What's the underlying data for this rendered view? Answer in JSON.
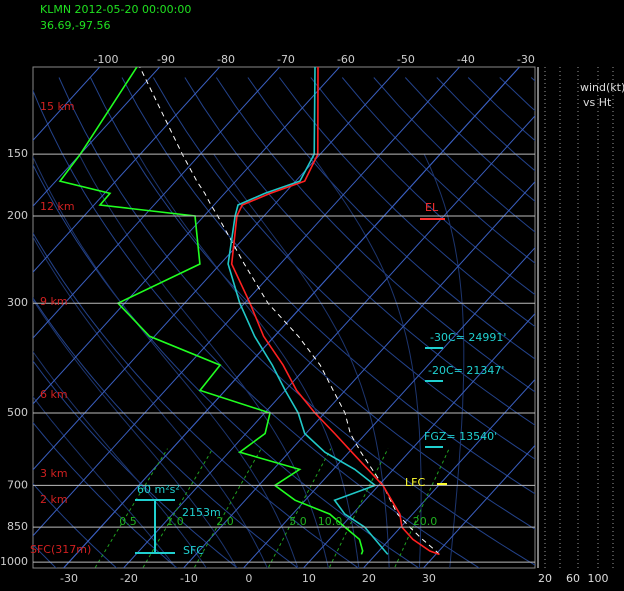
{
  "header": {
    "station": "KLMN 2012-05-20 00:00:00",
    "location": "36.69,-97.56"
  },
  "chart_data": {
    "type": "skewt",
    "pressure": [
      965,
      950,
      900,
      850,
      800,
      750,
      700,
      650,
      600,
      550,
      500,
      450,
      400,
      350,
      300,
      250,
      200,
      190,
      180,
      170,
      150,
      100
    ],
    "series": [
      {
        "color": "#20ff20",
        "values": [
          17.6,
          17.3,
          15,
          10.7,
          6.2,
          -1.7,
          -7.3,
          -5.6,
          -18.2,
          -16.8,
          -19.1,
          -34.2,
          -34.7,
          -50.8,
          -61.1,
          -53.4,
          -61.5,
          -79,
          -79.1,
          -89.3,
          -90,
          -93.8
        ]
      },
      {
        "color": "#ffffff",
        "dashed": true,
        "values": [
          30.6,
          29.5,
          25.5,
          21.5,
          17.5,
          14.2,
          10.7,
          6.5,
          2,
          -2.6,
          -6.6,
          -12,
          -18,
          -26,
          -36.1,
          -46,
          -57.7,
          -60.5,
          -63.3,
          -66.5,
          -73,
          -93.3
        ]
      },
      {
        "color": "#20c8c8",
        "values": [
          22,
          21,
          17.6,
          14,
          8.7,
          4.9,
          9.4,
          3.6,
          -4,
          -10.2,
          -14.4,
          -20,
          -26,
          -33.3,
          -40.8,
          -48.7,
          -54.8,
          -56,
          -53.3,
          -49.3,
          -51,
          -64.1
        ]
      },
      {
        "color": "#ff2020",
        "values": [
          30.6,
          28.5,
          23.9,
          20.2,
          17.9,
          14.4,
          10.7,
          5.8,
          0.5,
          -5.2,
          -11.6,
          -18.1,
          -24.2,
          -31.8,
          -39.1,
          -48.1,
          -54.5,
          -55.3,
          -52.4,
          -48.5,
          -50.4,
          -63.6
        ]
      }
    ],
    "ylim": [
      1028,
      100
    ],
    "yticks": [
      150,
      200,
      300,
      500,
      700,
      850,
      1000
    ],
    "log_y": true,
    "xlim": [
      -35.1,
      48.6
    ],
    "xticks": [
      -30,
      -20,
      -10,
      0,
      10,
      20,
      30
    ],
    "top_xticks": [
      -100,
      -90,
      -80,
      -70,
      -60,
      -50,
      -40,
      -30
    ],
    "mixing_ratios": [
      0.5,
      {
        "value": 1,
        "label": "1.0"
      },
      {
        "value": 2,
        "label": "2.0"
      },
      {
        "value": 5,
        "label": "5.0"
      },
      {
        "value": 10,
        "label": "10.0"
      },
      {
        "value": 20,
        "label": "20.0"
      }
    ],
    "height_labels": [
      "15 km",
      "12 km",
      "9 km",
      "6 km",
      "3 km",
      "2 km",
      "SFC(317m)"
    ],
    "level_labels": [
      "EL",
      "LFC",
      "-30C= 24991'",
      "-20C= 21347'",
      "FGZ= 13540'"
    ],
    "hodo_labels": [
      "60 m²s²",
      "2153m",
      "SFC"
    ],
    "wind_panel": {
      "title": "wind(kt)",
      "subtitle": "vs Ht",
      "ticks": [
        "20",
        "60",
        "100"
      ]
    }
  }
}
